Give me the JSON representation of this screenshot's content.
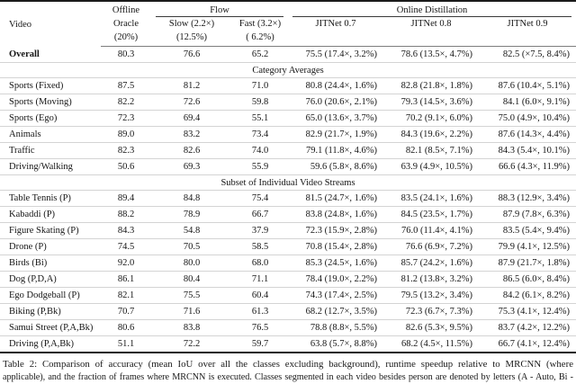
{
  "table": {
    "header": {
      "video": "Video",
      "offline": "Offline",
      "oracle": "Oracle",
      "oracle_pct": "(20%)",
      "flow": "Flow",
      "online_distillation": "Online Distillation",
      "slow": "Slow (2.2×)",
      "slow_pct": "(12.5%)",
      "fast": "Fast (3.2×)",
      "fast_pct": "( 6.2%)",
      "jitnet_07": "JITNet 0.7",
      "jitnet_08": "JITNet 0.8",
      "jitnet_09": "JITNet 0.9"
    },
    "overall_row": {
      "label": "Overall",
      "cells": [
        "80.3",
        "76.6",
        "65.2",
        "75.5 (17.4×, 3.2%)",
        "78.6 (13.5×, 4.7%)",
        "82.5 (×7.5, 8.4%)"
      ]
    },
    "sections": [
      {
        "title": "Category Averages",
        "rows": [
          {
            "label": "Sports (Fixed)",
            "cells": [
              "87.5",
              "81.2",
              "71.0",
              "80.8 (24.4×, 1.6%)",
              "82.8 (21.8×, 1.8%)",
              "87.6 (10.4×, 5.1%)"
            ]
          },
          {
            "label": "Sports (Moving)",
            "cells": [
              "82.2",
              "72.6",
              "59.8",
              "76.0 (20.6×, 2.1%)",
              "79.3 (14.5×, 3.6%)",
              "84.1 (6.0×, 9.1%)"
            ]
          },
          {
            "label": "Sports (Ego)",
            "cells": [
              "72.3",
              "69.4",
              "55.1",
              "65.0 (13.6×, 3.7%)",
              "70.2 (9.1×, 6.0%)",
              "75.0 (4.9×, 10.4%)"
            ]
          },
          {
            "label": "Animals",
            "cells": [
              "89.0",
              "83.2",
              "73.4",
              "82.9 (21.7×, 1.9%)",
              "84.3 (19.6×, 2.2%)",
              "87.6 (14.3×, 4.4%)"
            ]
          },
          {
            "label": "Traffic",
            "cells": [
              "82.3",
              "82.6",
              "74.0",
              "79.1 (11.8×, 4.6%)",
              "82.1 (8.5×, 7.1%)",
              "84.3 (5.4×, 10.1%)"
            ]
          },
          {
            "label": "Driving/Walking",
            "cells": [
              "50.6",
              "69.3",
              "55.9",
              "59.6 (5.8×, 8.6%)",
              "63.9 (4.9×, 10.5%)",
              "66.6 (4.3×, 11.9%)"
            ]
          }
        ]
      },
      {
        "title": "Subset of Individual Video Streams",
        "rows": [
          {
            "label": "Table Tennis (P)",
            "cells": [
              "89.4",
              "84.8",
              "75.4",
              "81.5 (24.7×, 1.6%)",
              "83.5 (24.1×, 1.6%)",
              "88.3 (12.9×, 3.4%)"
            ]
          },
          {
            "label": "Kabaddi (P)",
            "cells": [
              "88.2",
              "78.9",
              "66.7",
              "83.8 (24.8×, 1.6%)",
              "84.5 (23.5×, 1.7%)",
              "87.9 (7.8×, 6.3%)"
            ]
          },
          {
            "label": "Figure Skating (P)",
            "cells": [
              "84.3",
              "54.8",
              "37.9",
              "72.3 (15.9×, 2.8%)",
              "76.0 (11.4×, 4.1%)",
              "83.5 (5.4×, 9.4%)"
            ]
          },
          {
            "label": "Drone (P)",
            "cells": [
              "74.5",
              "70.5",
              "58.5",
              "70.8 (15.4×, 2.8%)",
              "76.6 (6.9×, 7.2%)",
              "79.9 (4.1×, 12.5%)"
            ]
          },
          {
            "label": "Birds (Bi)",
            "cells": [
              "92.0",
              "80.0",
              "68.0",
              "85.3 (24.5×, 1.6%)",
              "85.7 (24.2×, 1.6%)",
              "87.9 (21.7×, 1.8%)"
            ]
          },
          {
            "label": "Dog (P,D,A)",
            "cells": [
              "86.1",
              "80.4",
              "71.1",
              "78.4 (19.0×, 2.2%)",
              "81.2 (13.8×, 3.2%)",
              "86.5 (6.0×, 8.4%)"
            ]
          },
          {
            "label": "Ego Dodgeball (P)",
            "cells": [
              "82.1",
              "75.5",
              "60.4",
              "74.3 (17.4×, 2.5%)",
              "79.5 (13.2×, 3.4%)",
              "84.2 (6.1×, 8.2%)"
            ]
          },
          {
            "label": "Biking (P,Bk)",
            "cells": [
              "70.7",
              "71.6",
              "61.3",
              "68.2 (12.7×, 3.5%)",
              "72.3 (6.7×, 7.3%)",
              "75.3 (4.1×, 12.4%)"
            ]
          },
          {
            "label": "Samui Street (P,A,Bk)",
            "cells": [
              "80.6",
              "83.8",
              "76.5",
              "78.8 (8.8×, 5.5%)",
              "82.6 (5.3×, 9.5%)",
              "83.7 (4.2×, 12.2%)"
            ]
          },
          {
            "label": "Driving (P,A,Bk)",
            "cells": [
              "51.1",
              "72.2",
              "59.7",
              "63.8 (5.7×, 8.8%)",
              "68.2 (4.5×, 11.5%)",
              "66.7 (4.1×, 12.4%)"
            ]
          }
        ]
      }
    ]
  },
  "caption": {
    "line1": "Table 2: Comparison of accuracy (mean IoU over all the classes excluding background), runtime speedup relative to MRCNN (where",
    "line2": "applicable), and the fraction of frames where MRCNN is executed. Classes segmented in each video besides person are denoted by letters (A - Auto, Bi -"
  }
}
